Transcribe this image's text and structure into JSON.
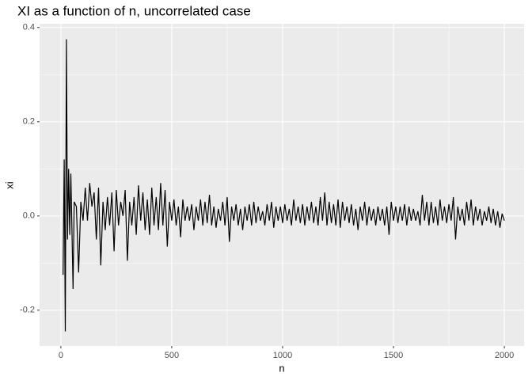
{
  "chart_data": {
    "type": "line",
    "title": "XI as a function of n, uncorrelated case",
    "x_label": "n",
    "y_label": "xi",
    "x": [
      10,
      15,
      20,
      25,
      30,
      35,
      40,
      45,
      50,
      55,
      60,
      70,
      80,
      90,
      100,
      110,
      120,
      130,
      140,
      150,
      160,
      170,
      180,
      190,
      200,
      210,
      220,
      230,
      240,
      250,
      260,
      270,
      280,
      290,
      300,
      310,
      320,
      330,
      340,
      350,
      360,
      370,
      380,
      390,
      400,
      410,
      420,
      430,
      440,
      450,
      460,
      470,
      480,
      490,
      500,
      510,
      520,
      530,
      540,
      550,
      560,
      570,
      580,
      590,
      600,
      610,
      620,
      630,
      640,
      650,
      660,
      670,
      680,
      690,
      700,
      710,
      720,
      730,
      740,
      750,
      760,
      770,
      780,
      790,
      800,
      810,
      820,
      830,
      840,
      850,
      860,
      870,
      880,
      890,
      900,
      910,
      920,
      930,
      940,
      950,
      960,
      970,
      980,
      990,
      1000,
      1010,
      1020,
      1030,
      1040,
      1050,
      1060,
      1070,
      1080,
      1090,
      1100,
      1110,
      1120,
      1130,
      1140,
      1150,
      1160,
      1170,
      1180,
      1190,
      1200,
      1210,
      1220,
      1230,
      1240,
      1250,
      1260,
      1270,
      1280,
      1290,
      1300,
      1310,
      1320,
      1330,
      1340,
      1350,
      1360,
      1370,
      1380,
      1390,
      1400,
      1410,
      1420,
      1430,
      1440,
      1450,
      1460,
      1470,
      1480,
      1490,
      1500,
      1510,
      1520,
      1530,
      1540,
      1550,
      1560,
      1570,
      1580,
      1590,
      1600,
      1610,
      1620,
      1630,
      1640,
      1650,
      1660,
      1670,
      1680,
      1690,
      1700,
      1710,
      1720,
      1730,
      1740,
      1750,
      1760,
      1770,
      1780,
      1790,
      1800,
      1810,
      1820,
      1830,
      1840,
      1850,
      1860,
      1870,
      1880,
      1890,
      1900,
      1910,
      1920,
      1930,
      1940,
      1950,
      1960,
      1970,
      1980,
      1990,
      2000
    ],
    "values": [
      -0.125,
      0.12,
      -0.245,
      0.375,
      -0.05,
      0.1,
      -0.04,
      0.09,
      -0.03,
      -0.155,
      0.03,
      0.02,
      -0.12,
      0.03,
      -0.01,
      0.06,
      -0.01,
      0.07,
      0.02,
      0.05,
      -0.05,
      0.06,
      -0.105,
      0.03,
      -0.03,
      0.04,
      -0.02,
      0.05,
      -0.075,
      0.055,
      -0.02,
      0.03,
      0.0,
      0.055,
      -0.095,
      0.03,
      -0.02,
      0.04,
      -0.04,
      0.065,
      -0.01,
      0.05,
      -0.03,
      0.035,
      -0.04,
      0.06,
      -0.02,
      0.04,
      -0.03,
      0.07,
      -0.02,
      0.055,
      -0.065,
      0.03,
      -0.01,
      0.035,
      -0.02,
      0.02,
      -0.045,
      0.035,
      -0.01,
      0.02,
      -0.01,
      0.025,
      -0.03,
      0.02,
      -0.01,
      0.035,
      -0.02,
      0.03,
      -0.015,
      0.045,
      -0.02,
      0.02,
      -0.025,
      0.015,
      -0.01,
      0.03,
      -0.02,
      0.04,
      -0.055,
      0.02,
      -0.01,
      0.025,
      -0.02,
      0.015,
      -0.03,
      0.02,
      -0.01,
      0.025,
      -0.02,
      0.03,
      -0.015,
      0.02,
      -0.01,
      0.01,
      -0.02,
      0.025,
      -0.01,
      0.03,
      -0.025,
      0.02,
      -0.01,
      0.02,
      -0.015,
      0.025,
      -0.01,
      0.015,
      -0.02,
      0.035,
      -0.01,
      0.02,
      -0.015,
      0.025,
      -0.02,
      0.02,
      -0.01,
      0.03,
      -0.015,
      0.02,
      -0.02,
      0.04,
      -0.01,
      0.05,
      -0.02,
      0.03,
      -0.015,
      0.025,
      -0.02,
      0.035,
      -0.025,
      0.03,
      -0.01,
      0.02,
      -0.015,
      0.025,
      -0.02,
      0.015,
      -0.03,
      0.02,
      -0.01,
      0.03,
      -0.02,
      0.02,
      -0.01,
      0.015,
      -0.02,
      0.02,
      -0.01,
      0.015,
      -0.02,
      0.02,
      -0.04,
      0.03,
      -0.01,
      0.02,
      -0.015,
      0.02,
      -0.01,
      0.025,
      -0.02,
      0.02,
      -0.01,
      0.015,
      -0.01,
      0.01,
      -0.02,
      0.045,
      -0.01,
      0.03,
      -0.02,
      0.03,
      -0.015,
      0.02,
      -0.02,
      0.035,
      -0.01,
      0.02,
      -0.015,
      0.025,
      -0.01,
      0.04,
      -0.05,
      0.02,
      -0.01,
      0.015,
      -0.02,
      0.03,
      -0.01,
      0.035,
      -0.02,
      0.02,
      -0.01,
      0.015,
      -0.02,
      0.01,
      -0.01,
      0.02,
      -0.015,
      0.015,
      -0.02,
      0.01,
      -0.025,
      0.005,
      -0.01
    ],
    "color": "#000000",
    "xlim": [
      -96,
      2089
    ],
    "xticks": [
      0,
      500,
      1000,
      1500,
      2000
    ],
    "minor_xticks": [
      250,
      750,
      1250,
      1750
    ],
    "ylim": [
      -0.276,
      0.408
    ],
    "yticks": [
      -0.2,
      {
        "value": 0,
        "label": "0.0"
      },
      0.2,
      0.4
    ],
    "minor_yticks": [
      -0.1,
      0.1,
      0.3
    ],
    "grid": true
  }
}
